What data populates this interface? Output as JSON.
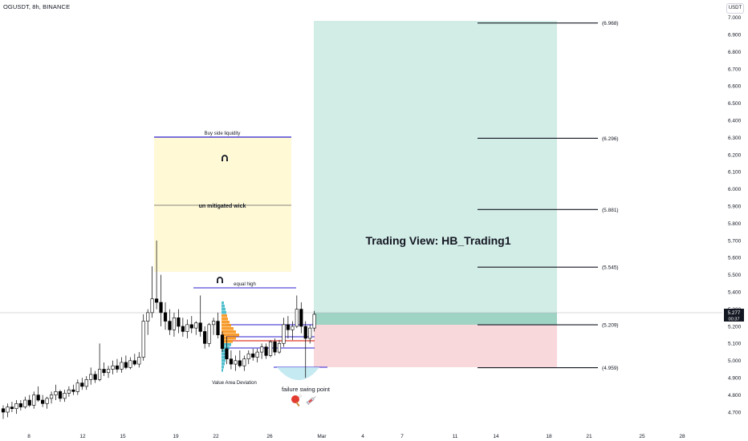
{
  "header": {
    "symbol_title": "OGUSDT, 8h, BINANCE",
    "currency_badge": "USDT"
  },
  "chart_data": {
    "type": "candlestick",
    "title": "",
    "price_axis": {
      "ticks": [
        "4.700",
        "4.800",
        "4.900",
        "5.000",
        "5.100",
        "5.200",
        "5.300",
        "5.400",
        "5.500",
        "5.600",
        "5.700",
        "5.800",
        "5.900",
        "6.000",
        "6.100",
        "6.200",
        "6.300",
        "6.400",
        "6.500",
        "6.600",
        "6.700",
        "6.800",
        "6.900"
      ],
      "top_partial": "7.000",
      "last_price": "5.277",
      "countdown": "00:37"
    },
    "time_axis": {
      "ticks": [
        "8",
        "12",
        "15",
        "19",
        "22",
        "26",
        "Mar",
        "4",
        "7",
        "11",
        "14",
        "18",
        "21",
        "25",
        "28"
      ]
    },
    "candles": [
      {
        "o": 4.72,
        "h": 4.74,
        "l": 4.66,
        "c": 4.7
      },
      {
        "o": 4.7,
        "h": 4.75,
        "l": 4.67,
        "c": 4.73
      },
      {
        "o": 4.73,
        "h": 4.76,
        "l": 4.7,
        "c": 4.72
      },
      {
        "o": 4.72,
        "h": 4.77,
        "l": 4.69,
        "c": 4.75
      },
      {
        "o": 4.75,
        "h": 4.77,
        "l": 4.71,
        "c": 4.73
      },
      {
        "o": 4.73,
        "h": 4.79,
        "l": 4.72,
        "c": 4.77
      },
      {
        "o": 4.77,
        "h": 4.8,
        "l": 4.73,
        "c": 4.74
      },
      {
        "o": 4.74,
        "h": 4.82,
        "l": 4.72,
        "c": 4.8
      },
      {
        "o": 4.8,
        "h": 4.85,
        "l": 4.76,
        "c": 4.77
      },
      {
        "o": 4.77,
        "h": 4.8,
        "l": 4.73,
        "c": 4.75
      },
      {
        "o": 4.75,
        "h": 4.79,
        "l": 4.72,
        "c": 4.78
      },
      {
        "o": 4.78,
        "h": 4.82,
        "l": 4.75,
        "c": 4.8
      },
      {
        "o": 4.8,
        "h": 4.86,
        "l": 4.77,
        "c": 4.82
      },
      {
        "o": 4.82,
        "h": 4.83,
        "l": 4.76,
        "c": 4.78
      },
      {
        "o": 4.78,
        "h": 4.83,
        "l": 4.76,
        "c": 4.81
      },
      {
        "o": 4.81,
        "h": 4.85,
        "l": 4.79,
        "c": 4.83
      },
      {
        "o": 4.83,
        "h": 4.86,
        "l": 4.8,
        "c": 4.82
      },
      {
        "o": 4.82,
        "h": 4.89,
        "l": 4.8,
        "c": 4.87
      },
      {
        "o": 4.87,
        "h": 4.9,
        "l": 4.83,
        "c": 4.85
      },
      {
        "o": 4.85,
        "h": 4.91,
        "l": 4.83,
        "c": 4.89
      },
      {
        "o": 4.89,
        "h": 4.96,
        "l": 4.86,
        "c": 4.92
      },
      {
        "o": 4.92,
        "h": 4.94,
        "l": 4.87,
        "c": 4.89
      },
      {
        "o": 4.89,
        "h": 5.1,
        "l": 4.88,
        "c": 4.95
      },
      {
        "o": 4.95,
        "h": 4.99,
        "l": 4.91,
        "c": 4.93
      },
      {
        "o": 4.93,
        "h": 4.97,
        "l": 4.9,
        "c": 4.95
      },
      {
        "o": 4.95,
        "h": 5.0,
        "l": 4.92,
        "c": 4.97
      },
      {
        "o": 4.97,
        "h": 5.01,
        "l": 4.93,
        "c": 4.95
      },
      {
        "o": 4.95,
        "h": 5.02,
        "l": 4.93,
        "c": 4.99
      },
      {
        "o": 4.99,
        "h": 5.03,
        "l": 4.95,
        "c": 4.96
      },
      {
        "o": 4.96,
        "h": 5.02,
        "l": 4.95,
        "c": 5.0
      },
      {
        "o": 5.0,
        "h": 5.04,
        "l": 4.97,
        "c": 4.98
      },
      {
        "o": 4.98,
        "h": 5.05,
        "l": 4.96,
        "c": 5.02
      },
      {
        "o": 5.02,
        "h": 5.27,
        "l": 5.0,
        "c": 5.23
      },
      {
        "o": 5.23,
        "h": 5.3,
        "l": 5.15,
        "c": 5.28
      },
      {
        "o": 5.28,
        "h": 5.55,
        "l": 5.25,
        "c": 5.36
      },
      {
        "o": 5.36,
        "h": 5.7,
        "l": 5.3,
        "c": 5.34
      },
      {
        "o": 5.34,
        "h": 5.5,
        "l": 5.2,
        "c": 5.28
      },
      {
        "o": 5.28,
        "h": 5.34,
        "l": 5.18,
        "c": 5.23
      },
      {
        "o": 5.23,
        "h": 5.3,
        "l": 5.15,
        "c": 5.18
      },
      {
        "o": 5.18,
        "h": 5.28,
        "l": 5.14,
        "c": 5.25
      },
      {
        "o": 5.25,
        "h": 5.3,
        "l": 5.16,
        "c": 5.2
      },
      {
        "o": 5.2,
        "h": 5.25,
        "l": 5.14,
        "c": 5.17
      },
      {
        "o": 5.17,
        "h": 5.24,
        "l": 5.13,
        "c": 5.21
      },
      {
        "o": 5.21,
        "h": 5.26,
        "l": 5.16,
        "c": 5.19
      },
      {
        "o": 5.19,
        "h": 5.23,
        "l": 5.15,
        "c": 5.22
      },
      {
        "o": 5.22,
        "h": 5.38,
        "l": 5.14,
        "c": 5.17
      },
      {
        "o": 5.17,
        "h": 5.2,
        "l": 5.07,
        "c": 5.1
      },
      {
        "o": 5.1,
        "h": 5.22,
        "l": 5.08,
        "c": 5.21
      },
      {
        "o": 5.21,
        "h": 5.25,
        "l": 5.15,
        "c": 5.23
      },
      {
        "o": 5.23,
        "h": 5.28,
        "l": 5.13,
        "c": 5.15
      },
      {
        "o": 5.15,
        "h": 5.17,
        "l": 5.05,
        "c": 5.07
      },
      {
        "o": 5.07,
        "h": 5.14,
        "l": 4.98,
        "c": 5.01
      },
      {
        "o": 5.01,
        "h": 5.06,
        "l": 4.95,
        "c": 4.98
      },
      {
        "o": 4.98,
        "h": 5.03,
        "l": 4.94,
        "c": 5.0
      },
      {
        "o": 5.0,
        "h": 5.06,
        "l": 4.96,
        "c": 4.97
      },
      {
        "o": 4.97,
        "h": 5.03,
        "l": 4.94,
        "c": 5.01
      },
      {
        "o": 5.01,
        "h": 5.06,
        "l": 4.98,
        "c": 5.04
      },
      {
        "o": 5.04,
        "h": 5.07,
        "l": 5.0,
        "c": 5.02
      },
      {
        "o": 5.02,
        "h": 5.07,
        "l": 4.99,
        "c": 5.05
      },
      {
        "o": 5.05,
        "h": 5.1,
        "l": 5.01,
        "c": 5.08
      },
      {
        "o": 5.08,
        "h": 5.1,
        "l": 5.01,
        "c": 5.03
      },
      {
        "o": 5.03,
        "h": 5.12,
        "l": 5.02,
        "c": 5.11
      },
      {
        "o": 5.11,
        "h": 5.13,
        "l": 5.03,
        "c": 5.05
      },
      {
        "o": 5.05,
        "h": 5.12,
        "l": 5.04,
        "c": 5.1
      },
      {
        "o": 5.1,
        "h": 5.25,
        "l": 5.08,
        "c": 5.21
      },
      {
        "o": 5.21,
        "h": 5.26,
        "l": 5.13,
        "c": 5.18
      },
      {
        "o": 5.18,
        "h": 5.23,
        "l": 5.12,
        "c": 5.2
      },
      {
        "o": 5.2,
        "h": 5.38,
        "l": 5.19,
        "c": 5.3
      },
      {
        "o": 5.3,
        "h": 5.34,
        "l": 5.16,
        "c": 5.2
      },
      {
        "o": 5.2,
        "h": 5.23,
        "l": 4.9,
        "c": 5.13
      },
      {
        "o": 5.13,
        "h": 5.21,
        "l": 5.1,
        "c": 5.19
      },
      {
        "o": 5.19,
        "h": 5.29,
        "l": 5.17,
        "c": 5.27
      }
    ],
    "annotations": {
      "buy_side_liquidity": "Buy side liquidity",
      "unmitigated_wick": "un mitigated wick",
      "equal_high": "equal high",
      "value_area": "Value Area Deviation",
      "failure_swing": "failure swing point",
      "watermark": "Trading View: HB_Trading1",
      "magnet_icon": "magnet-icon",
      "emoji_icons": [
        "ping-pong-icon",
        "syringe-icon"
      ]
    },
    "levels": [
      {
        "label": "(6.968)",
        "price": 6.968
      },
      {
        "label": "(6.296)",
        "price": 6.296
      },
      {
        "label": "(5.881)",
        "price": 5.881
      },
      {
        "label": "(5.545)",
        "price": 5.545
      },
      {
        "label": "(5.209)",
        "price": 5.209
      },
      {
        "label": "(4.959)",
        "price": 4.959
      }
    ],
    "position": {
      "entry": 5.277,
      "target": 6.968,
      "stop": 4.959
    },
    "colors": {
      "bull_candle": "#ffffff",
      "bear_candle": "#000000",
      "liquidity_zone": "#fff9d6",
      "profit_zone": "#d2ece6",
      "loss_zone": "#f9d8dc",
      "line_blue": "#2b1ecf",
      "line_red": "#e03b2e",
      "profile_orange": "#f7931a",
      "profile_teal": "#3fb8c8"
    }
  }
}
